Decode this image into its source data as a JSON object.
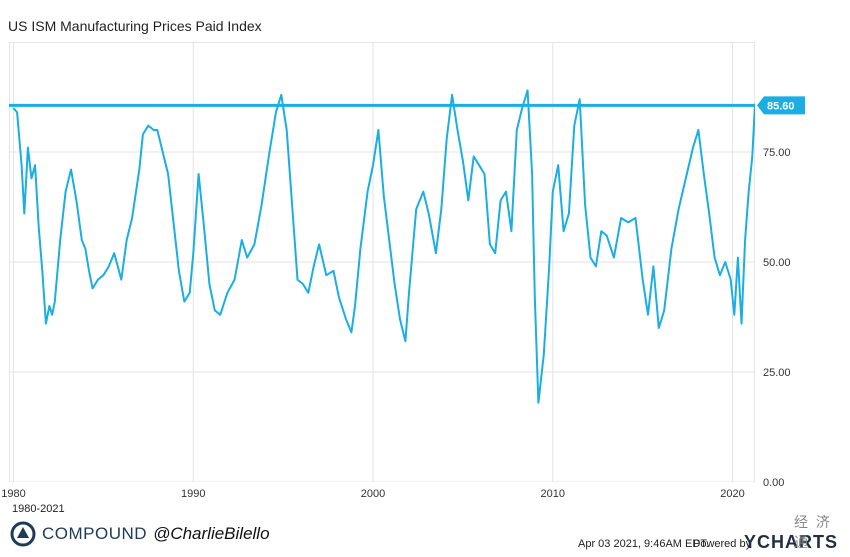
{
  "title": "US ISM Manufacturing Prices Paid Index",
  "range_label": "1980-2021",
  "brand": {
    "name": "COMPOUND",
    "handle": "@CharlieBilello"
  },
  "footer": {
    "date": "Apr 03 2021, 9:46AM EDT.",
    "powered": "Powered by",
    "ycharts": "YCHARTS"
  },
  "watermark": "经 济 通",
  "colors": {
    "line": "#1aaee2",
    "brand": "#1f3b57",
    "grid": "#e3e3e3"
  },
  "chart_data": {
    "type": "line",
    "title": "US ISM Manufacturing Prices Paid Index",
    "x_ticks": [
      1980,
      1990,
      2000,
      2010,
      2020
    ],
    "y_ticks": [
      0,
      25,
      50,
      75
    ],
    "y_tick_labels": [
      "0.00",
      "25.00",
      "50.00",
      "75.00"
    ],
    "xlim": [
      1979.75,
      2021.25
    ],
    "ylim": [
      0,
      100
    ],
    "grid": true,
    "last_value": 85.6,
    "last_value_label": "85.60",
    "series": [
      {
        "x": [
          1980.0,
          1980.2,
          1980.45,
          1980.6,
          1980.8,
          1981.0,
          1981.2,
          1981.4,
          1981.6,
          1981.8,
          1982.0,
          1982.15,
          1982.3,
          1982.6,
          1982.9,
          1983.2,
          1983.5,
          1983.8,
          1984.0,
          1984.2,
          1984.4,
          1984.7,
          1985.0,
          1985.3,
          1985.6,
          1986.0,
          1986.3,
          1986.6,
          1987.0,
          1987.2,
          1987.5,
          1987.8,
          1988.0,
          1988.3,
          1988.6,
          1988.9,
          1989.2,
          1989.5,
          1989.8,
          1990.0,
          1990.3,
          1990.6,
          1990.9,
          1991.2,
          1991.5,
          1991.9,
          1992.3,
          1992.7,
          1993.0,
          1993.4,
          1993.8,
          1994.2,
          1994.6,
          1994.9,
          1995.2,
          1995.5,
          1995.8,
          1996.1,
          1996.4,
          1996.7,
          1997.0,
          1997.4,
          1997.8,
          1998.1,
          1998.5,
          1998.8,
          1999.0,
          1999.3,
          1999.7,
          2000.0,
          2000.3,
          2000.6,
          2000.9,
          2001.2,
          2001.5,
          2001.8,
          2002.0,
          2002.4,
          2002.8,
          2003.1,
          2003.5,
          2003.8,
          2004.1,
          2004.4,
          2004.7,
          2005.0,
          2005.3,
          2005.6,
          2005.9,
          2006.2,
          2006.5,
          2006.8,
          2007.1,
          2007.4,
          2007.7,
          2008.0,
          2008.3,
          2008.6,
          2008.85,
          2009.0,
          2009.2,
          2009.5,
          2009.8,
          2010.0,
          2010.3,
          2010.6,
          2010.9,
          2011.2,
          2011.5,
          2011.8,
          2012.1,
          2012.4,
          2012.7,
          2013.0,
          2013.4,
          2013.8,
          2014.2,
          2014.6,
          2015.0,
          2015.3,
          2015.6,
          2015.9,
          2016.2,
          2016.6,
          2017.0,
          2017.4,
          2017.8,
          2018.1,
          2018.4,
          2018.7,
          2019.0,
          2019.3,
          2019.6,
          2019.9,
          2020.1,
          2020.3,
          2020.5,
          2020.7,
          2020.9,
          2021.1,
          2021.25
        ],
        "y": [
          85,
          84,
          72,
          61,
          76,
          69,
          72,
          58,
          48,
          36,
          40,
          38,
          41,
          55,
          66,
          71,
          64,
          55,
          53,
          48,
          44,
          46,
          47,
          49,
          52,
          46,
          55,
          60,
          71,
          79,
          81,
          80,
          80,
          75,
          70,
          59,
          48,
          41,
          43,
          52,
          70,
          58,
          45,
          39,
          38,
          43,
          46,
          55,
          51,
          54,
          63,
          74,
          84,
          88,
          80,
          63,
          46,
          45,
          43,
          49,
          54,
          47,
          48,
          42,
          37,
          34,
          40,
          53,
          66,
          72,
          80,
          65,
          55,
          45,
          37,
          32,
          43,
          62,
          66,
          61,
          52,
          62,
          78,
          88,
          80,
          73,
          64,
          74,
          72,
          70,
          54,
          52,
          64,
          66,
          57,
          80,
          85,
          89,
          70,
          42,
          18,
          29,
          49,
          66,
          72,
          57,
          61,
          81,
          87,
          63,
          51,
          49,
          57,
          56,
          51,
          60,
          59,
          60,
          46,
          38,
          49,
          35,
          39,
          53,
          62,
          69,
          76,
          80,
          70,
          61,
          51,
          47,
          50,
          46,
          38,
          51,
          36,
          55,
          66,
          74,
          86
        ]
      }
    ]
  }
}
